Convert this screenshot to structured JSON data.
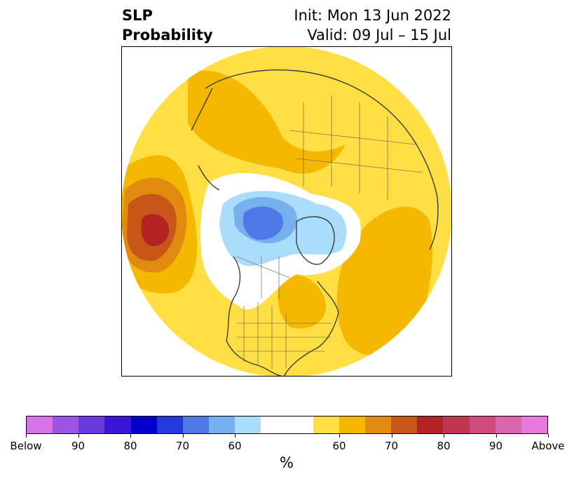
{
  "title": {
    "left_line1": "SLP",
    "left_line2": "Probability",
    "right_line1": "Init: Mon 13 Jun 2022",
    "right_line2": "Valid: 09 Jul – 15 Jul"
  },
  "colorbar": {
    "unit_label": "%",
    "below_colors": [
      "#d672ea",
      "#9c55e0",
      "#6b3adc",
      "#3a17d8",
      "#0000cc",
      "#2339dc",
      "#4d78e6",
      "#76b0f0",
      "#aadcfb"
    ],
    "neutral_color": "#ffffff",
    "above_colors": [
      "#ffdf44",
      "#f5b800",
      "#e08a10",
      "#c85616",
      "#b32323",
      "#c23550",
      "#cf4c7e",
      "#d966ae",
      "#e879df"
    ],
    "tick_labels": [
      "Below",
      "90",
      "80",
      "70",
      "60",
      "60",
      "70",
      "80",
      "90",
      "Above"
    ]
  },
  "map": {
    "land_line_color": "#3c3c3c",
    "regions": {
      "pacific_high": "Above normal SLP over the North Pacific (peak 80%)",
      "arctic_low": "Below normal SLP over the Canadian Arctic (peak 70%)"
    }
  }
}
